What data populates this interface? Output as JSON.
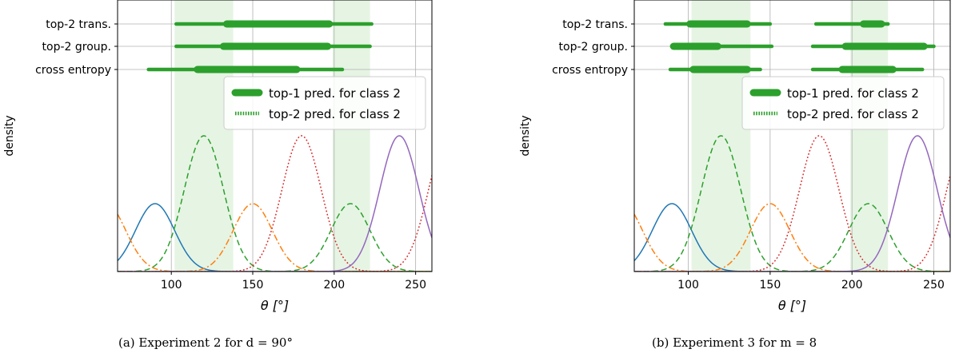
{
  "captions": {
    "a": "(a) Experiment 2 for d = 90°",
    "b": "(b) Experiment 3 for m = 8"
  },
  "style": {
    "green": "#2ca02c",
    "blue": "#1f77b4",
    "orange": "#ff7f0e",
    "red": "#d62728",
    "purple": "#9467bd",
    "shade": "#e6f4e4"
  },
  "chart_data": [
    {
      "type": "line",
      "xlabel": "θ [°]",
      "ylabel": "density",
      "xlim": [
        67,
        260
      ],
      "xticks": [
        100,
        150,
        200,
        250
      ],
      "grid": true,
      "legend_position": "right, below the interval rows",
      "legend": [
        {
          "label": "top-1 pred. for class 2",
          "style": "thick-solid"
        },
        {
          "label": "top-2 pred. for class 2",
          "style": "dotted"
        }
      ],
      "shaded_regions": [
        [
          102,
          138
        ],
        [
          199,
          222
        ]
      ],
      "rows": [
        {
          "label": "top-2 trans.",
          "top2": [
            [
              103,
              223
            ]
          ],
          "top1": [
            [
              134,
              197
            ]
          ]
        },
        {
          "label": "top-2 group.",
          "top2": [
            [
              103,
              222
            ]
          ],
          "top1": [
            [
              132,
              196
            ]
          ]
        },
        {
          "label": "cross entropy",
          "top2": [
            [
              86,
              205
            ]
          ],
          "top1": [
            [
              116,
              177
            ]
          ]
        }
      ],
      "densities": [
        {
          "color": "blue",
          "dash": "solid",
          "center": 90,
          "sigma": 12,
          "peak": 0.36
        },
        {
          "color": "orange",
          "dash": "dashdot",
          "center": 60,
          "sigma": 12,
          "peak": 0.36
        },
        {
          "color": "orange",
          "dash": "dashdot",
          "center": 150,
          "sigma": 12,
          "peak": 0.36
        },
        {
          "color": "green",
          "dash": "dashed",
          "center": 120,
          "sigma": 12,
          "peak": 0.72
        },
        {
          "color": "green",
          "dash": "dashed",
          "center": 210,
          "sigma": 12,
          "peak": 0.36
        },
        {
          "color": "red",
          "dash": "dotted",
          "center": 180,
          "sigma": 12,
          "peak": 0.72
        },
        {
          "color": "red",
          "dash": "dotted",
          "center": 270,
          "sigma": 12,
          "peak": 0.72
        },
        {
          "color": "purple",
          "dash": "solid",
          "center": 240,
          "sigma": 12,
          "peak": 0.72
        }
      ]
    },
    {
      "type": "line",
      "xlabel": "θ [°]",
      "ylabel": "density",
      "xlim": [
        67,
        260
      ],
      "xticks": [
        100,
        150,
        200,
        250
      ],
      "grid": true,
      "legend_position": "right, below the interval rows",
      "legend": [
        {
          "label": "top-1 pred. for class 2",
          "style": "thick-solid"
        },
        {
          "label": "top-2 pred. for class 2",
          "style": "dotted"
        }
      ],
      "shaded_regions": [
        [
          102,
          138
        ],
        [
          199,
          222
        ]
      ],
      "rows": [
        {
          "label": "top-2 trans.",
          "top2": [
            [
              86,
              150
            ],
            [
              178,
              222
            ]
          ],
          "top1": [
            [
              101,
              136
            ],
            [
              207,
              218
            ]
          ]
        },
        {
          "label": "top-2 group.",
          "top2": [
            [
              90,
              151
            ],
            [
              176,
              250
            ]
          ],
          "top1": [
            [
              91,
              118
            ],
            [
              196,
              244
            ]
          ]
        },
        {
          "label": "cross entropy",
          "top2": [
            [
              89,
              144
            ],
            [
              176,
              243
            ]
          ],
          "top1": [
            [
              103,
              136
            ],
            [
              194,
              225
            ]
          ]
        }
      ],
      "densities": [
        {
          "color": "blue",
          "dash": "solid",
          "center": 90,
          "sigma": 12,
          "peak": 0.36
        },
        {
          "color": "orange",
          "dash": "dashdot",
          "center": 60,
          "sigma": 12,
          "peak": 0.36
        },
        {
          "color": "orange",
          "dash": "dashdot",
          "center": 150,
          "sigma": 12,
          "peak": 0.36
        },
        {
          "color": "green",
          "dash": "dashed",
          "center": 120,
          "sigma": 12,
          "peak": 0.72
        },
        {
          "color": "green",
          "dash": "dashed",
          "center": 210,
          "sigma": 12,
          "peak": 0.36
        },
        {
          "color": "red",
          "dash": "dotted",
          "center": 180,
          "sigma": 12,
          "peak": 0.72
        },
        {
          "color": "red",
          "dash": "dotted",
          "center": 270,
          "sigma": 12,
          "peak": 0.72
        },
        {
          "color": "purple",
          "dash": "solid",
          "center": 240,
          "sigma": 12,
          "peak": 0.72
        }
      ]
    }
  ]
}
